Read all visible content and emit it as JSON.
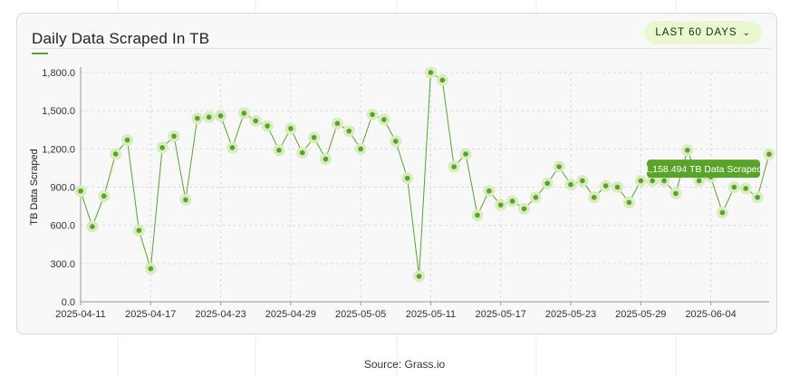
{
  "header": {
    "title": "Daily Data Scraped In TB",
    "range_label": "LAST 60 DAYS",
    "range_icon": "chevron-down-icon"
  },
  "source": "Source: Grass.io",
  "tooltip": {
    "text": "1,158.494 TB Data Scraped"
  },
  "colors": {
    "accent": "#5aa32b",
    "point_halo": "#d8ecc0",
    "tooltip_bg": "#5aa32b",
    "range_bg": "#eaf8cf"
  },
  "chart_data": {
    "type": "line",
    "title": "Daily Data Scraped In TB",
    "xlabel": "",
    "ylabel": "TB Data Scraped",
    "ylim": [
      0,
      1800
    ],
    "grid": true,
    "y_ticks": [
      "0.0",
      "300.0",
      "600.0",
      "900.0",
      "1,200.0",
      "1,500.0",
      "1,800.0"
    ],
    "x_ticks": [
      "2025-04-11",
      "2025-04-17",
      "2025-04-23",
      "2025-04-29",
      "2025-05-05",
      "2025-05-11",
      "2025-05-17",
      "2025-05-23",
      "2025-05-29",
      "2025-06-04"
    ],
    "x": [
      "2025-04-11",
      "2025-04-12",
      "2025-04-13",
      "2025-04-14",
      "2025-04-15",
      "2025-04-16",
      "2025-04-17",
      "2025-04-18",
      "2025-04-19",
      "2025-04-20",
      "2025-04-21",
      "2025-04-22",
      "2025-04-23",
      "2025-04-24",
      "2025-04-25",
      "2025-04-26",
      "2025-04-27",
      "2025-04-28",
      "2025-04-29",
      "2025-04-30",
      "2025-05-01",
      "2025-05-02",
      "2025-05-03",
      "2025-05-04",
      "2025-05-05",
      "2025-05-06",
      "2025-05-07",
      "2025-05-08",
      "2025-05-09",
      "2025-05-10",
      "2025-05-11",
      "2025-05-12",
      "2025-05-13",
      "2025-05-14",
      "2025-05-15",
      "2025-05-16",
      "2025-05-17",
      "2025-05-18",
      "2025-05-19",
      "2025-05-20",
      "2025-05-21",
      "2025-05-22",
      "2025-05-23",
      "2025-05-24",
      "2025-05-25",
      "2025-05-26",
      "2025-05-27",
      "2025-05-28",
      "2025-05-29",
      "2025-05-30",
      "2025-05-31",
      "2025-06-01",
      "2025-06-02",
      "2025-06-03",
      "2025-06-04",
      "2025-06-05",
      "2025-06-06",
      "2025-06-07",
      "2025-06-08",
      "2025-06-09"
    ],
    "series": [
      {
        "name": "",
        "values": [
          870,
          590,
          830,
          1160,
          1270,
          560,
          260,
          1210,
          1300,
          800,
          1440,
          1450,
          1460,
          1210,
          1480,
          1420,
          1380,
          1190,
          1360,
          1170,
          1290,
          1120,
          1400,
          1340,
          1200,
          1470,
          1430,
          1260,
          970,
          200,
          1800,
          1740,
          1060,
          1160,
          680,
          870,
          760,
          790,
          730,
          820,
          930,
          1060,
          920,
          950,
          820,
          910,
          900,
          780,
          950,
          950,
          950,
          850,
          1190,
          950,
          980,
          700,
          900,
          890,
          820,
          1158.494
        ]
      }
    ]
  }
}
